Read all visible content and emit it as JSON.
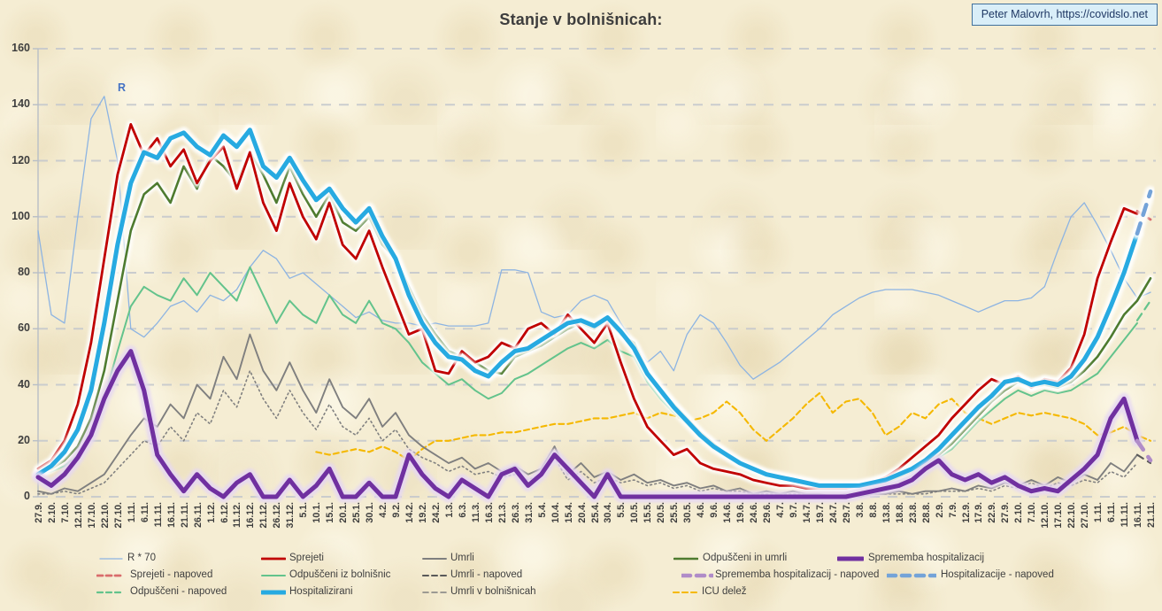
{
  "header": {
    "title": "Stanje v bolnišnicah:"
  },
  "credit": {
    "text": "Peter Malovrh, https://covidslo.net"
  },
  "annotation": {
    "r_label": "R"
  },
  "colors": {
    "background": "#f5edd3",
    "gridline": "#c6c9cd",
    "axis_line": "#b8bec6",
    "title_text": "#3d3d3d",
    "tick_text": "#3e3e3e",
    "credit_bg": "#d9eef8",
    "credit_border": "#41719c",
    "credit_text": "#1f3864",
    "r_annotation": "#4472c4"
  },
  "chart_data": {
    "type": "line",
    "title": "Stanje v bolnišnicah:",
    "xlabel": "",
    "ylabel": "",
    "ylim": [
      0,
      160
    ],
    "y_ticks": [
      0,
      20,
      40,
      60,
      80,
      100,
      120,
      140,
      160
    ],
    "grid": "dashed-horizontal",
    "legend_position": "bottom",
    "x_tick_interval_days": 5,
    "categories": [
      "27.9.",
      "2.10.",
      "7.10.",
      "12.10.",
      "17.10.",
      "22.10.",
      "27.10.",
      "1.11.",
      "6.11.",
      "11.11.",
      "16.11.",
      "21.11.",
      "26.11.",
      "1.12.",
      "6.12.",
      "11.12.",
      "16.12.",
      "21.12.",
      "26.12.",
      "31.12.",
      "5.1.",
      "10.1.",
      "15.1.",
      "20.1.",
      "25.1.",
      "30.1.",
      "4.2.",
      "9.2.",
      "14.2.",
      "19.2.",
      "24.2.",
      "1.3.",
      "6.3.",
      "11.3.",
      "16.3.",
      "21.3.",
      "26.3.",
      "31.3.",
      "5.4.",
      "10.4.",
      "15.4.",
      "20.4.",
      "25.4.",
      "30.4.",
      "5.5.",
      "10.5.",
      "15.5.",
      "20.5.",
      "25.5.",
      "30.5.",
      "4.6.",
      "9.6.",
      "14.6.",
      "19.6.",
      "24.6.",
      "29.6.",
      "4.7.",
      "9.7.",
      "14.7.",
      "19.7.",
      "24.7.",
      "29.7.",
      "3.8.",
      "8.8.",
      "13.8.",
      "18.8.",
      "23.8.",
      "28.8.",
      "2.9.",
      "7.9.",
      "12.9.",
      "17.9.",
      "22.9.",
      "27.9.",
      "2.10.",
      "7.10.",
      "12.10.",
      "17.10.",
      "22.10.",
      "27.10.",
      "1.11.",
      "6.11.",
      "11.11.",
      "16.11.",
      "21.11."
    ],
    "series": [
      {
        "id": "r70",
        "label": "R * 70",
        "color": "#8db4e2",
        "width": 1.3,
        "dash": "",
        "glow": null,
        "values": [
          95,
          65,
          62,
          100,
          135,
          143,
          120,
          60,
          57,
          62,
          68,
          70,
          66,
          72,
          70,
          74,
          82,
          88,
          85,
          78,
          80,
          76,
          72,
          68,
          64,
          66,
          63,
          62,
          62,
          61,
          62,
          61,
          61,
          61,
          62,
          81,
          81,
          80,
          66,
          64,
          65,
          70,
          72,
          70,
          62,
          55,
          48,
          52,
          45,
          58,
          65,
          62,
          55,
          47,
          42,
          45,
          48,
          52,
          56,
          60,
          65,
          68,
          71,
          73,
          74,
          74,
          74,
          73,
          72,
          70,
          68,
          66,
          68,
          70,
          70,
          71,
          75,
          88,
          100,
          105,
          97,
          88,
          78,
          71,
          73
        ]
      },
      {
        "id": "icu",
        "label": "ICU delež",
        "color": "#f5b800",
        "width": 2.1,
        "dash": "6 4",
        "glow": null,
        "start": 21,
        "values": [
          16,
          15,
          16,
          17,
          16,
          18,
          16,
          13,
          17,
          20,
          20,
          21,
          22,
          22,
          23,
          23,
          24,
          25,
          26,
          26,
          27,
          28,
          28,
          29,
          30,
          28,
          30,
          29,
          27,
          28,
          30,
          34,
          30,
          24,
          20,
          24,
          28,
          33,
          37,
          30,
          34,
          35,
          30,
          22,
          25,
          30,
          28,
          33,
          35,
          30,
          28,
          26,
          28,
          30,
          29,
          30,
          29,
          28,
          26,
          22,
          23,
          25,
          22,
          20
        ]
      },
      {
        "id": "umrli_v_bolnisnicah",
        "label": "Umrli v bolnišnicah",
        "color": "#808080",
        "width": 1.6,
        "dash": "1.8 3.4",
        "glow": null,
        "values": [
          1,
          1,
          2,
          1,
          3,
          5,
          10,
          15,
          20,
          18,
          25,
          20,
          30,
          26,
          38,
          32,
          45,
          35,
          28,
          38,
          30,
          24,
          33,
          25,
          22,
          28,
          20,
          24,
          17,
          14,
          12,
          9,
          11,
          8,
          9,
          7,
          8,
          6,
          8,
          14,
          6,
          9,
          5,
          7,
          5,
          6,
          4,
          5,
          3,
          4,
          2,
          3,
          2,
          2,
          1,
          1,
          1,
          1,
          1,
          1,
          0,
          1,
          0,
          1,
          1,
          1,
          1,
          1,
          2,
          2,
          2,
          3,
          2,
          4,
          3,
          5,
          3,
          5,
          4,
          6,
          5,
          9,
          7,
          12,
          null
        ]
      },
      {
        "id": "umrli",
        "label": "Umrli",
        "color": "#7f7f7f",
        "width": 1.9,
        "dash": "",
        "glow": null,
        "values": [
          2,
          1,
          3,
          2,
          5,
          8,
          15,
          22,
          28,
          25,
          33,
          28,
          40,
          35,
          50,
          42,
          58,
          45,
          38,
          48,
          38,
          30,
          42,
          32,
          28,
          35,
          25,
          30,
          22,
          18,
          15,
          12,
          14,
          10,
          12,
          9,
          11,
          8,
          10,
          18,
          8,
          12,
          7,
          9,
          6,
          8,
          5,
          6,
          4,
          5,
          3,
          4,
          2,
          3,
          1,
          2,
          1,
          2,
          1,
          1,
          0,
          1,
          0,
          1,
          1,
          2,
          1,
          2,
          2,
          3,
          2,
          4,
          3,
          5,
          4,
          6,
          4,
          7,
          5,
          8,
          6,
          12,
          9,
          15,
          null
        ]
      },
      {
        "id": "odpusceni_iz_bolnisnic",
        "label": "Odpuščeni iz bolnišnic",
        "color": "#63c38c",
        "width": 2.0,
        "dash": "",
        "glow": null,
        "values": [
          8,
          9,
          11,
          15,
          22,
          35,
          52,
          68,
          75,
          72,
          70,
          78,
          72,
          80,
          75,
          70,
          82,
          72,
          62,
          70,
          65,
          62,
          72,
          65,
          62,
          70,
          62,
          60,
          55,
          48,
          44,
          40,
          42,
          38,
          35,
          37,
          42,
          44,
          47,
          50,
          53,
          55,
          53,
          56,
          52,
          50,
          41,
          35,
          30,
          26,
          21,
          17,
          14,
          11,
          9,
          7,
          6,
          5,
          5,
          4,
          3,
          3,
          3,
          4,
          5,
          6,
          8,
          11,
          14,
          17,
          22,
          27,
          31,
          35,
          38,
          36,
          38,
          37,
          38,
          41,
          44,
          50,
          56,
          62,
          null
        ]
      },
      {
        "id": "odpusceni_in_umrli",
        "label": "Odpuščeni in umrli",
        "color": "#4e7b2f",
        "width": 2.6,
        "dash": "",
        "glow": "#ffffff",
        "values": [
          9,
          10,
          13,
          18,
          28,
          45,
          70,
          95,
          108,
          112,
          105,
          118,
          110,
          122,
          118,
          112,
          123,
          115,
          105,
          118,
          108,
          100,
          108,
          98,
          95,
          100,
          90,
          85,
          75,
          65,
          58,
          52,
          50,
          48,
          45,
          44,
          50,
          52,
          54,
          57,
          60,
          62,
          60,
          63,
          58,
          55,
          45,
          38,
          33,
          28,
          23,
          19,
          15,
          12,
          10,
          8,
          7,
          6,
          5,
          4,
          4,
          3,
          4,
          4,
          5,
          7,
          9,
          12,
          15,
          19,
          24,
          29,
          34,
          38,
          41,
          39,
          40,
          39,
          41,
          45,
          50,
          57,
          65,
          70,
          78
        ]
      },
      {
        "id": "sprejeti",
        "label": "Sprejeti",
        "color": "#c00000",
        "width": 2.8,
        "dash": "",
        "glow": "#ffffff",
        "values": [
          10,
          13,
          20,
          33,
          55,
          85,
          115,
          133,
          122,
          128,
          118,
          124,
          112,
          120,
          125,
          110,
          123,
          105,
          95,
          112,
          100,
          92,
          105,
          90,
          85,
          95,
          82,
          70,
          58,
          60,
          45,
          44,
          52,
          48,
          50,
          55,
          53,
          60,
          62,
          58,
          65,
          60,
          55,
          62,
          48,
          35,
          25,
          20,
          15,
          17,
          12,
          10,
          9,
          8,
          6,
          5,
          4,
          4,
          3,
          3,
          3,
          3,
          4,
          5,
          7,
          10,
          14,
          18,
          22,
          28,
          33,
          38,
          42,
          40,
          43,
          39,
          42,
          41,
          46,
          58,
          78,
          91,
          103,
          101,
          null
        ]
      },
      {
        "id": "hospitalizirani",
        "label": "Hospitalizirani",
        "color": "#27aae1",
        "width": 5.0,
        "dash": "",
        "glow": "#ffffff",
        "values": [
          8,
          11,
          16,
          24,
          38,
          62,
          90,
          112,
          123,
          121,
          128,
          130,
          125,
          122,
          129,
          125,
          131,
          118,
          114,
          121,
          113,
          106,
          110,
          103,
          98,
          103,
          93,
          85,
          72,
          62,
          55,
          50,
          49,
          45,
          43,
          48,
          52,
          53,
          56,
          59,
          62,
          63,
          61,
          64,
          59,
          53,
          44,
          38,
          32,
          27,
          22,
          18,
          15,
          12,
          10,
          8,
          7,
          6,
          5,
          4,
          4,
          4,
          4,
          5,
          6,
          8,
          10,
          13,
          17,
          22,
          27,
          32,
          36,
          41,
          42,
          40,
          41,
          40,
          43,
          49,
          57,
          68,
          80,
          94,
          null
        ]
      },
      {
        "id": "sprememba",
        "label": "Sprememba hospitalizacij",
        "color": "#7030a0",
        "width": 5.0,
        "dash": "",
        "glow": "#e6d8f2",
        "values": [
          7,
          4,
          8,
          14,
          22,
          35,
          45,
          52,
          38,
          15,
          8,
          2,
          8,
          3,
          0,
          5,
          8,
          0,
          0,
          6,
          0,
          4,
          10,
          0,
          0,
          5,
          0,
          0,
          15,
          8,
          3,
          0,
          6,
          3,
          0,
          8,
          10,
          4,
          8,
          15,
          10,
          5,
          0,
          8,
          0,
          0,
          0,
          0,
          0,
          0,
          0,
          0,
          0,
          0,
          0,
          0,
          0,
          0,
          0,
          0,
          0,
          0,
          1,
          2,
          3,
          4,
          6,
          10,
          13,
          8,
          6,
          8,
          5,
          7,
          4,
          2,
          3,
          2,
          6,
          10,
          15,
          28,
          35,
          20,
          null
        ]
      },
      {
        "id": "sprejeti_napoved",
        "label": "Sprejeti - napoved",
        "color": "#d96c6c",
        "width": 2.8,
        "dash": "9 6",
        "glow": null,
        "start": 83,
        "values": [
          102,
          99
        ]
      },
      {
        "id": "odpusceni_napoved",
        "label": "Odpuščeni - napoved",
        "color": "#63c38c",
        "width": 2.2,
        "dash": "9 6",
        "glow": null,
        "start": 83,
        "values": [
          63,
          70
        ]
      },
      {
        "id": "umrli_napoved",
        "label": "Umrli - napoved",
        "color": "#595959",
        "width": 2.1,
        "dash": "8 6",
        "glow": null,
        "start": 83,
        "values": [
          15,
          12
        ]
      },
      {
        "id": "sprememba_napoved",
        "label": "Sprememba hospitalizacij - napoved",
        "color": "#b08cc8",
        "width": 4.6,
        "dash": "12 10",
        "glow": null,
        "start": 83,
        "values": [
          20,
          13
        ]
      },
      {
        "id": "hospitalizacije_napoved",
        "label": "Hospitalizacije - napoved",
        "color": "#74a3d8",
        "width": 4.6,
        "dash": "12 10",
        "glow": "#ffffff",
        "start": 83,
        "values": [
          94,
          109
        ]
      }
    ],
    "legend_order": [
      "r70",
      "sprejeti",
      "umrli",
      "odpusceni_in_umrli",
      "sprememba",
      "sprejeti_napoved",
      "odpusceni_iz_bolnisnic",
      "umrli_napoved",
      "sprememba_napoved",
      "hospitalizacije_napoved",
      "odpusceni_napoved",
      "hospitalizirani",
      "umrli_v_bolnisnicah",
      "icu"
    ]
  }
}
